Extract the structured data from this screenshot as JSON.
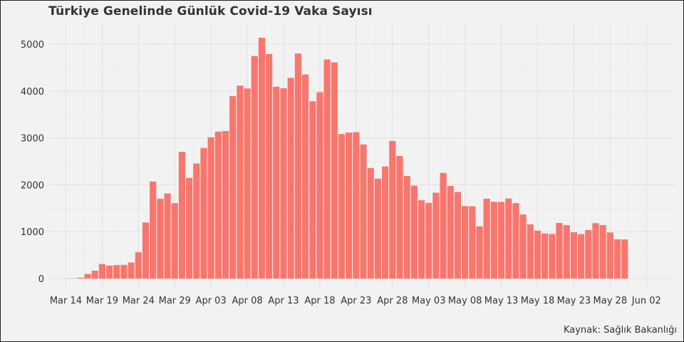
{
  "chart_data": {
    "type": "bar",
    "title": "Türkiye Genelinde Günlük Covid-19 Vaka Sayısı",
    "caption": "Kaynak: Sağlık Bakanlığı",
    "xlabel": "",
    "ylabel": "",
    "ylim": [
      0,
      5400
    ],
    "yticks": [
      0,
      1000,
      2000,
      3000,
      4000,
      5000
    ],
    "xticks": [
      {
        "label": "Mar 14",
        "day": 0
      },
      {
        "label": "Mar 19",
        "day": 5
      },
      {
        "label": "Mar 24",
        "day": 10
      },
      {
        "label": "Mar 29",
        "day": 15
      },
      {
        "label": "Apr 03",
        "day": 20
      },
      {
        "label": "Apr 08",
        "day": 25
      },
      {
        "label": "Apr 13",
        "day": 30
      },
      {
        "label": "Apr 18",
        "day": 35
      },
      {
        "label": "Apr 23",
        "day": 40
      },
      {
        "label": "Apr 28",
        "day": 45
      },
      {
        "label": "May 03",
        "day": 50
      },
      {
        "label": "May 08",
        "day": 55
      },
      {
        "label": "May 13",
        "day": 60
      },
      {
        "label": "May 18",
        "day": 65
      },
      {
        "label": "May 23",
        "day": 70
      },
      {
        "label": "May 28",
        "day": 75
      },
      {
        "label": "Jun 02",
        "day": 80
      }
    ],
    "start_label": "Mar 14",
    "first_bar_day": 1,
    "bar_color": "#f8766d",
    "grid": true,
    "values": [
      1,
      20,
      98,
      168,
      311,
      277,
      289,
      293,
      343,
      561,
      1196,
      2069,
      1704,
      1815,
      1610,
      2704,
      2148,
      2456,
      2786,
      3013,
      3135,
      3148,
      3892,
      4117,
      4056,
      4747,
      5138,
      4789,
      4093,
      4062,
      4281,
      4801,
      4353,
      3783,
      3977,
      4674,
      4611,
      3083,
      3116,
      3122,
      2861,
      2357,
      2131,
      2392,
      2936,
      2615,
      2188,
      1983,
      1670,
      1614,
      1832,
      2253,
      1977,
      1848,
      1546,
      1542,
      1114,
      1704,
      1639,
      1635,
      1708,
      1610,
      1368,
      1158,
      1022,
      961,
      952,
      1186,
      1141,
      987,
      948,
      1035,
      1182,
      1141,
      983,
      839,
      835
    ]
  }
}
